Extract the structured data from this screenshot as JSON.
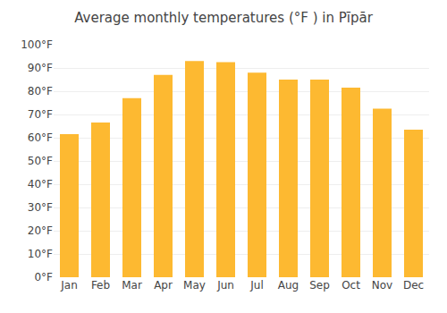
{
  "chart_data": {
    "type": "bar",
    "title": "Average monthly temperatures (°F ) in Pīpār",
    "categories": [
      "Jan",
      "Feb",
      "Mar",
      "Apr",
      "May",
      "Jun",
      "Jul",
      "Aug",
      "Sep",
      "Oct",
      "Nov",
      "Dec"
    ],
    "values": [
      61.5,
      66.5,
      77,
      87,
      93,
      92.5,
      88,
      85,
      85,
      81.5,
      72.5,
      63.5
    ],
    "color": "#FDB931",
    "ylim": [
      0,
      100
    ],
    "yticks": [
      {
        "value": 0,
        "label": "0°F"
      },
      {
        "value": 10,
        "label": "10°F"
      },
      {
        "value": 20,
        "label": "20°F"
      },
      {
        "value": 30,
        "label": "30°F"
      },
      {
        "value": 40,
        "label": "40°F"
      },
      {
        "value": 50,
        "label": "50°F"
      },
      {
        "value": 60,
        "label": "60°F"
      },
      {
        "value": 70,
        "label": "70°F"
      },
      {
        "value": 80,
        "label": "80°F"
      },
      {
        "value": 90,
        "label": "90°F"
      },
      {
        "value": 100,
        "label": "100°F"
      }
    ],
    "grid": true
  }
}
